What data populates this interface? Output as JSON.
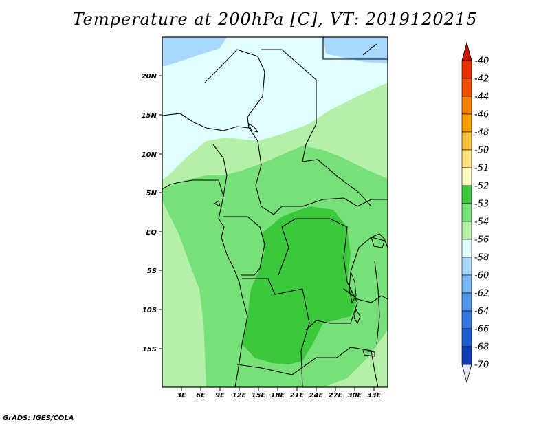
{
  "title": "Temperature at 200hPa [C], VT: 2019120215",
  "credit": "GrADS: IGES/COLA",
  "map": {
    "lon_ticks": [
      "3E",
      "6E",
      "9E",
      "12E",
      "15E",
      "18E",
      "21E",
      "24E",
      "27E",
      "30E",
      "33E"
    ],
    "lat_ticks": [
      "20N",
      "15N",
      "10N",
      "5N",
      "EQ",
      "5S",
      "10S",
      "15S"
    ]
  },
  "colorbar": {
    "levels": [
      {
        "label": "-40",
        "color": "#e83000"
      },
      {
        "label": "-42",
        "color": "#f05000"
      },
      {
        "label": "-44",
        "color": "#f48000"
      },
      {
        "label": "-46",
        "color": "#f8a000"
      },
      {
        "label": "-48",
        "color": "#fcc040"
      },
      {
        "label": "-50",
        "color": "#fee080"
      },
      {
        "label": "-51",
        "color": "#fffac0"
      },
      {
        "label": "-52",
        "color": "#3cc83c"
      },
      {
        "label": "-53",
        "color": "#78e078"
      },
      {
        "label": "-54",
        "color": "#b4f0a8"
      },
      {
        "label": "-56",
        "color": "#e0feff"
      },
      {
        "label": "-58",
        "color": "#a8d8fc"
      },
      {
        "label": "-60",
        "color": "#78b8f4"
      },
      {
        "label": "-62",
        "color": "#5096ec"
      },
      {
        "label": "-64",
        "color": "#3478e0"
      },
      {
        "label": "-66",
        "color": "#1c5ad0"
      },
      {
        "label": "-68",
        "color": "#0c3cb4"
      },
      {
        "label": "-70",
        "color": "#040a78"
      }
    ],
    "top_arrow_color": "#c81400",
    "bottom_arrow_color": "#e4e4f8"
  }
}
